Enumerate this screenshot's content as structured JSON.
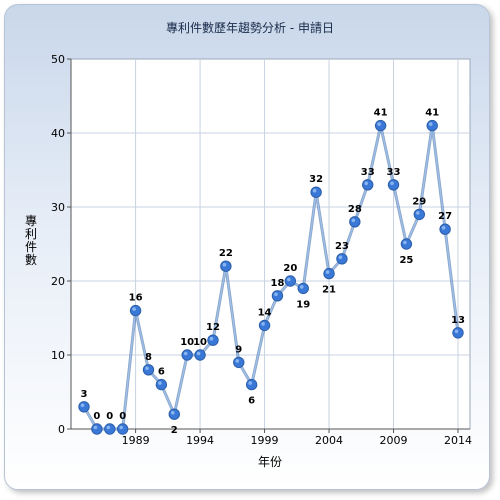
{
  "chart_data": {
    "type": "line",
    "title": "專利件數歷年趨勢分析 - 申請日",
    "xlabel": "年份",
    "ylabel": "專利件數",
    "x": [
      1985,
      1986,
      1987,
      1988,
      1989,
      1990,
      1991,
      1992,
      1993,
      1994,
      1995,
      1996,
      1997,
      1998,
      1999,
      2000,
      2001,
      2002,
      2003,
      2004,
      2005,
      2006,
      2007,
      2008,
      2009,
      2010,
      2011,
      2012,
      2013,
      2014
    ],
    "values": [
      3,
      0,
      0,
      0,
      16,
      8,
      6,
      2,
      10,
      10,
      12,
      22,
      9,
      6,
      14,
      18,
      20,
      19,
      32,
      21,
      23,
      28,
      33,
      41,
      33,
      25,
      29,
      41,
      27,
      13
    ],
    "x_ticks": [
      "1989",
      "1994",
      "1999",
      "2004",
      "2009",
      "2014"
    ],
    "y_ticks": [
      "0",
      "10",
      "20",
      "30",
      "40",
      "50"
    ],
    "ylim": [
      0,
      50
    ],
    "grid": true,
    "legend": false,
    "colors": {
      "line": "#5b8fd6",
      "marker": "#3a78d8",
      "grid": "#c8d2e0"
    }
  }
}
